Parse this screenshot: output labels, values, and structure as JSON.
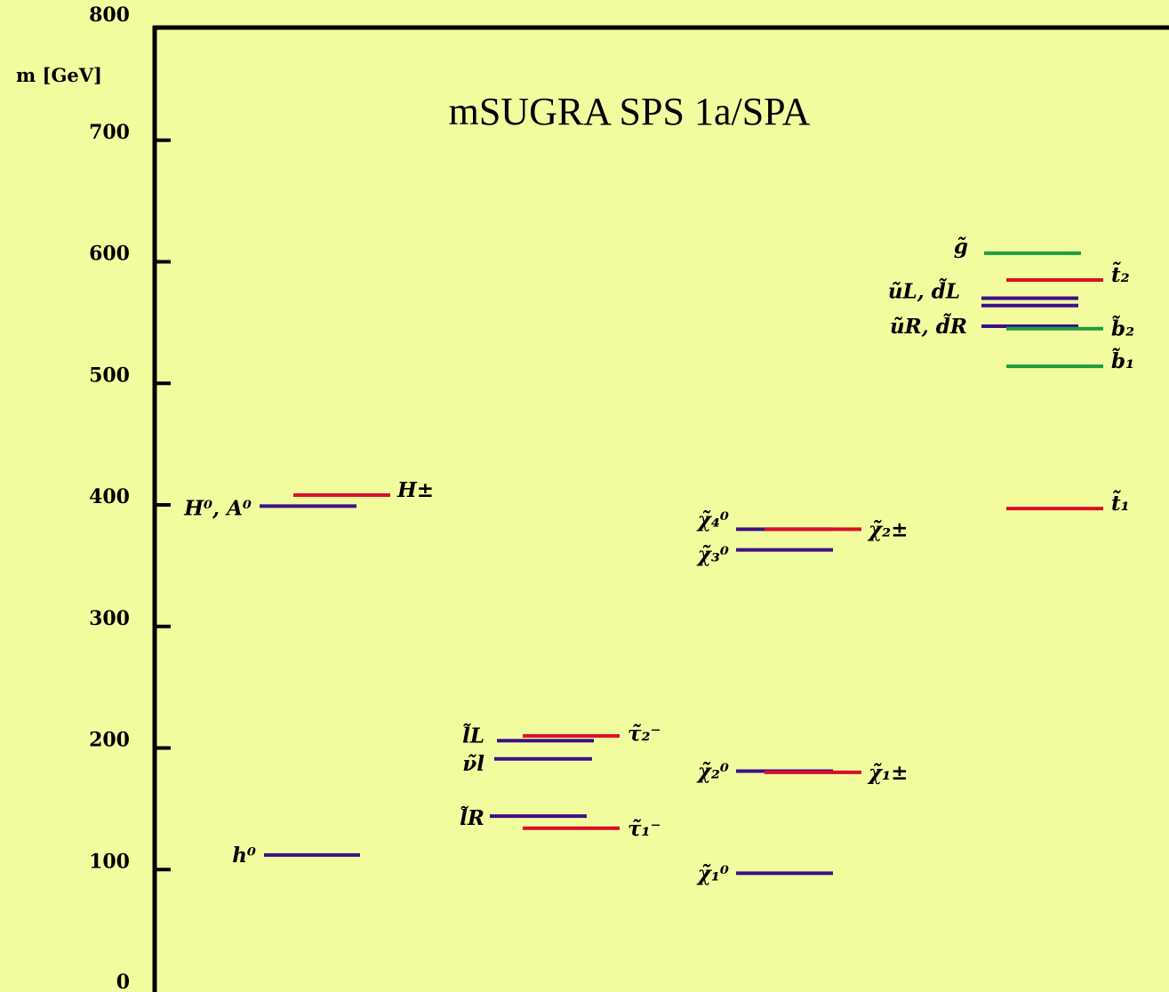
{
  "chart_data": {
    "type": "scatter",
    "title": "mSUGRA SPS 1a/SPA",
    "ylabel": "m [GeV]",
    "ylim": [
      0,
      800
    ],
    "yticks": [
      0,
      100,
      200,
      300,
      400,
      500,
      600,
      700,
      800
    ],
    "grid": false,
    "colors": {
      "blue": "#3d0f87",
      "red": "#db0f29",
      "green": "#1e9e3d"
    },
    "levels": [
      {
        "id": "h0",
        "mass": 112,
        "color": "blue",
        "label": "h⁰",
        "label_side": "left"
      },
      {
        "id": "H0A0",
        "mass": 399,
        "color": "blue",
        "label": "H⁰, A⁰",
        "label_side": "left"
      },
      {
        "id": "Hpm",
        "mass": 408,
        "color": "red",
        "label": "H±",
        "label_side": "right"
      },
      {
        "id": "lL",
        "mass": 206,
        "color": "blue",
        "label": "l̃L",
        "label_side": "left"
      },
      {
        "id": "nul",
        "mass": 191,
        "color": "blue",
        "label": "ν̃l",
        "label_side": "left"
      },
      {
        "id": "lR",
        "mass": 144,
        "color": "blue",
        "label": "l̃R",
        "label_side": "left"
      },
      {
        "id": "tau2",
        "mass": 210,
        "color": "red",
        "label": "τ̃₂⁻",
        "label_side": "right"
      },
      {
        "id": "tau1",
        "mass": 134,
        "color": "red",
        "label": "τ̃₁⁻",
        "label_side": "right"
      },
      {
        "id": "chi01",
        "mass": 97,
        "color": "blue",
        "label": "χ̃₁⁰",
        "label_side": "left"
      },
      {
        "id": "chi02",
        "mass": 181,
        "color": "blue",
        "label": "χ̃₂⁰",
        "label_side": "left"
      },
      {
        "id": "chi03",
        "mass": 363,
        "color": "blue",
        "label": "χ̃₃⁰",
        "label_side": "left"
      },
      {
        "id": "chi04",
        "mass": 380,
        "color": "blue",
        "label": "χ̃₄⁰",
        "label_side": "left"
      },
      {
        "id": "chipm1",
        "mass": 180,
        "color": "red",
        "label": "χ̃₁±",
        "label_side": "right"
      },
      {
        "id": "chipm2",
        "mass": 380,
        "color": "red",
        "label": "χ̃₂±",
        "label_side": "right"
      },
      {
        "id": "gluino",
        "mass": 607,
        "color": "green",
        "label": "g̃",
        "label_side": "left"
      },
      {
        "id": "uLdL",
        "mass": 570,
        "color": "blue",
        "label": "ũL, d̃L",
        "label_side": "left"
      },
      {
        "id": "uLdL2",
        "mass": 564,
        "color": "blue",
        "label": "",
        "label_side": "none"
      },
      {
        "id": "uRdR",
        "mass": 547,
        "color": "blue",
        "label": "ũR, d̃R",
        "label_side": "left"
      },
      {
        "id": "stop2",
        "mass": 585,
        "color": "red",
        "label": "t̃₂",
        "label_side": "right"
      },
      {
        "id": "sbot2",
        "mass": 545,
        "color": "green",
        "label": "b̃₂",
        "label_side": "right"
      },
      {
        "id": "sbot1",
        "mass": 514,
        "color": "green",
        "label": "b̃₁",
        "label_side": "right"
      },
      {
        "id": "stop1",
        "mass": 397,
        "color": "red",
        "label": "t̃₁",
        "label_side": "right"
      }
    ]
  }
}
